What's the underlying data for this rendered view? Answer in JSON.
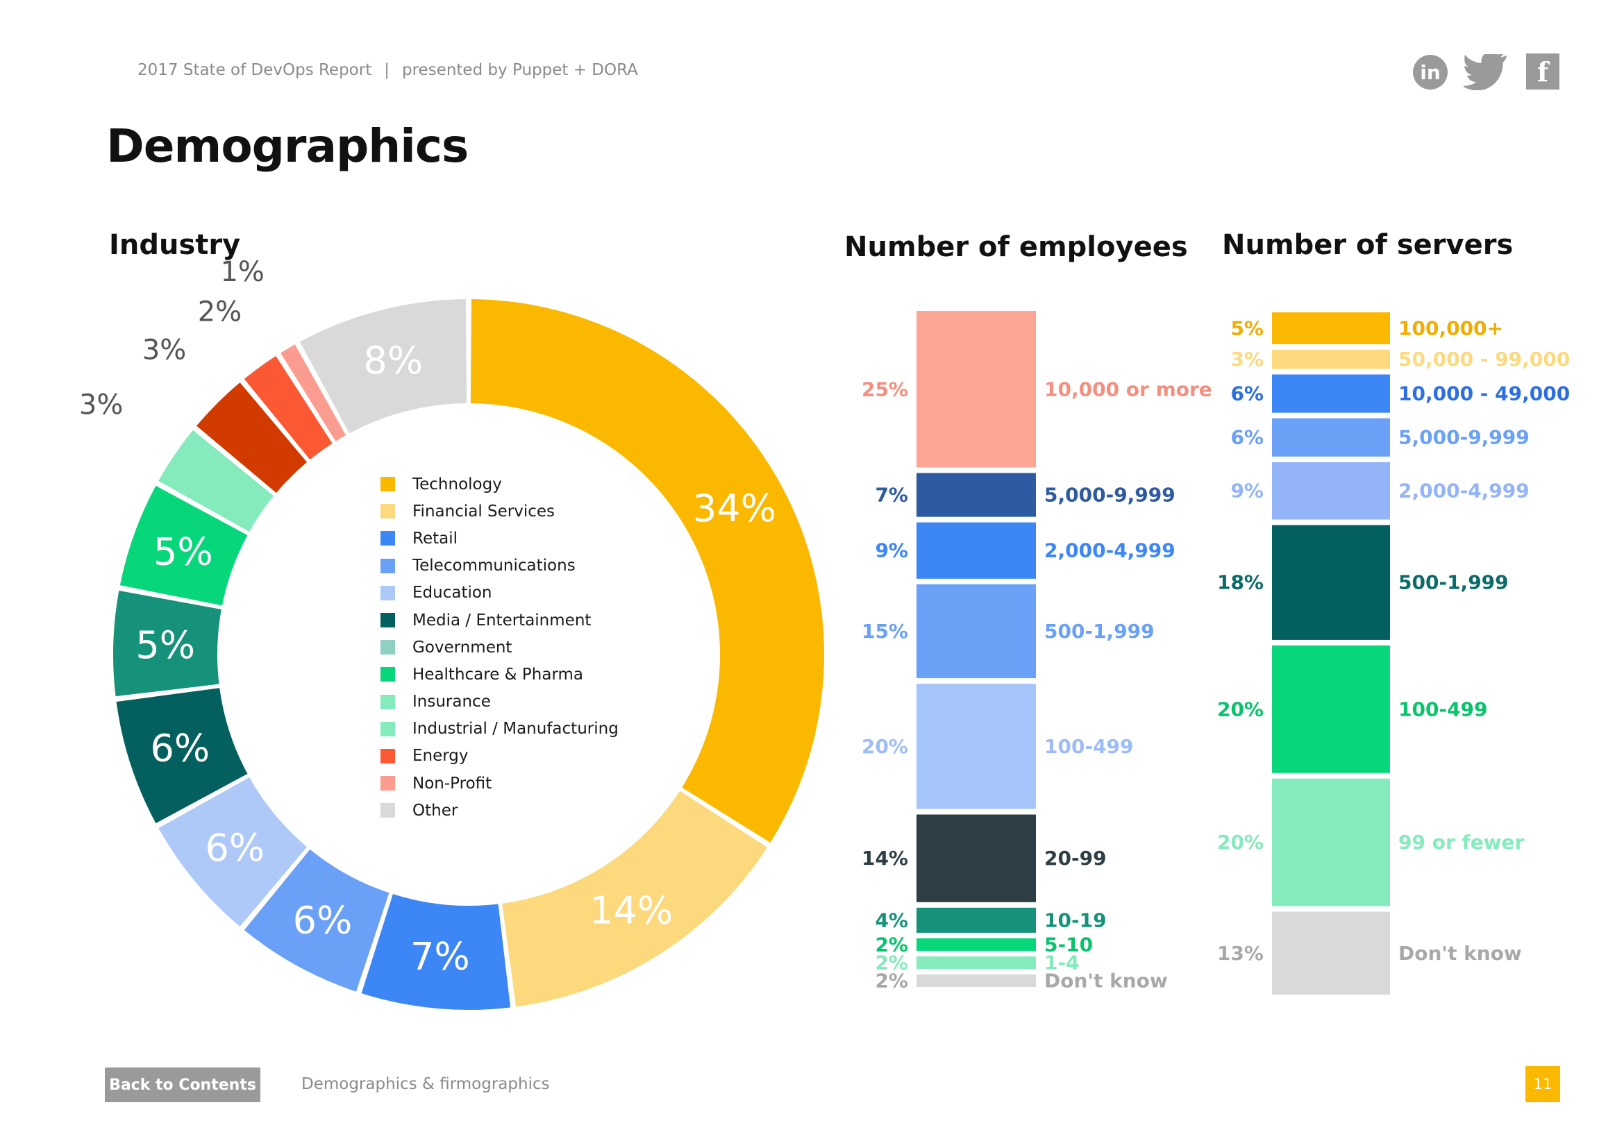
{
  "header": {
    "report": "2017 State of DevOps Report",
    "separator": "|",
    "presented": "presented by Puppet + DORA"
  },
  "social": {
    "linkedin": "in",
    "facebook": "f"
  },
  "title": "Demographics",
  "footer": {
    "back_label": "Back to Contents",
    "section": "Demographics & firmographics",
    "page": "11"
  },
  "icons": [
    "linkedin-icon",
    "twitter-icon",
    "facebook-icon"
  ],
  "chart_data": [
    {
      "type": "pie",
      "title": "Industry",
      "categories": [
        "Technology",
        "Financial Services",
        "Retail",
        "Telecommunications",
        "Education",
        "Media / Entertainment",
        "Government",
        "Healthcare & Pharma",
        "Insurance",
        "Industrial / Manufacturing",
        "Energy",
        "Non-Profit",
        "Other"
      ],
      "values": [
        34,
        14,
        7,
        6,
        6,
        6,
        5,
        5,
        3,
        3,
        2,
        1,
        8
      ],
      "labels": [
        "34%",
        "14%",
        "7%",
        "6%",
        "6%",
        "6%",
        "5%",
        "5%",
        "3%",
        "3%",
        "2%",
        "1%",
        "8%"
      ],
      "colors": [
        "#fbb800",
        "#fcd97d",
        "#3c86f6",
        "#6aa0f5",
        "#aec8f8",
        "#03605f",
        "#16917a",
        "#07d77a",
        "#85eabc",
        "#d13b00",
        "#fb5934",
        "#fb9c90",
        "#d9d9d9"
      ],
      "legend_colors": [
        "#fbb800",
        "#fcd97d",
        "#3c86f6",
        "#6aa0f5",
        "#aec8f8",
        "#03605f",
        "#8fd0c3",
        "#07d77a",
        "#85eabc",
        "#85eabc",
        "#fb5934",
        "#fb9c90",
        "#d9d9d9"
      ],
      "legend": "center"
    },
    {
      "type": "bar",
      "title": "Number of employees",
      "categories": [
        "10,000 or more",
        "5,000-9,999",
        "2,000-4,999",
        "500-1,999",
        "100-499",
        "20-99",
        "10-19",
        "5-10",
        "1-4",
        "Don't know"
      ],
      "values": [
        25,
        7,
        9,
        15,
        20,
        14,
        4,
        2,
        2,
        2
      ],
      "labels": [
        "25%",
        "7%",
        "9%",
        "15%",
        "20%",
        "14%",
        "4%",
        "2%",
        "2%",
        "2%"
      ],
      "colors": [
        "#fca696",
        "#2d5aa0",
        "#3c86f6",
        "#6aa0f5",
        "#a6c5fa",
        "#2e3e45",
        "#16917a",
        "#07d77a",
        "#85eabc",
        "#d9d9d9"
      ],
      "label_colors": [
        "#f48f7f",
        "#2d5aa0",
        "#3c86f6",
        "#6aa0f5",
        "#9ebcf5",
        "#2e3e45",
        "#16917a",
        "#07c46c",
        "#85eabc",
        "#a8a8a8"
      ]
    },
    {
      "type": "bar",
      "title": "Number of servers",
      "categories": [
        "100,000+",
        "50,000 - 99,000",
        "10,000 - 49,000",
        "5,000-9,999",
        "2,000-4,999",
        "500-1,999",
        "100-499",
        "99 or fewer",
        "Don't know"
      ],
      "values": [
        5,
        3,
        6,
        6,
        9,
        18,
        20,
        20,
        13
      ],
      "labels": [
        "5%",
        "3%",
        "6%",
        "6%",
        "9%",
        "18%",
        "20%",
        "20%",
        "13%"
      ],
      "colors": [
        "#fbb800",
        "#fcd97d",
        "#3c86f6",
        "#6aa0f5",
        "#93b4f8",
        "#03605f",
        "#07d77a",
        "#85eabc",
        "#d9d9d9"
      ],
      "label_colors": [
        "#f0ad00",
        "#fcd97d",
        "#2d6ee0",
        "#6aa0f5",
        "#93b4f8",
        "#0b6b68",
        "#07c46c",
        "#85eabc",
        "#a8a8a8"
      ]
    }
  ]
}
